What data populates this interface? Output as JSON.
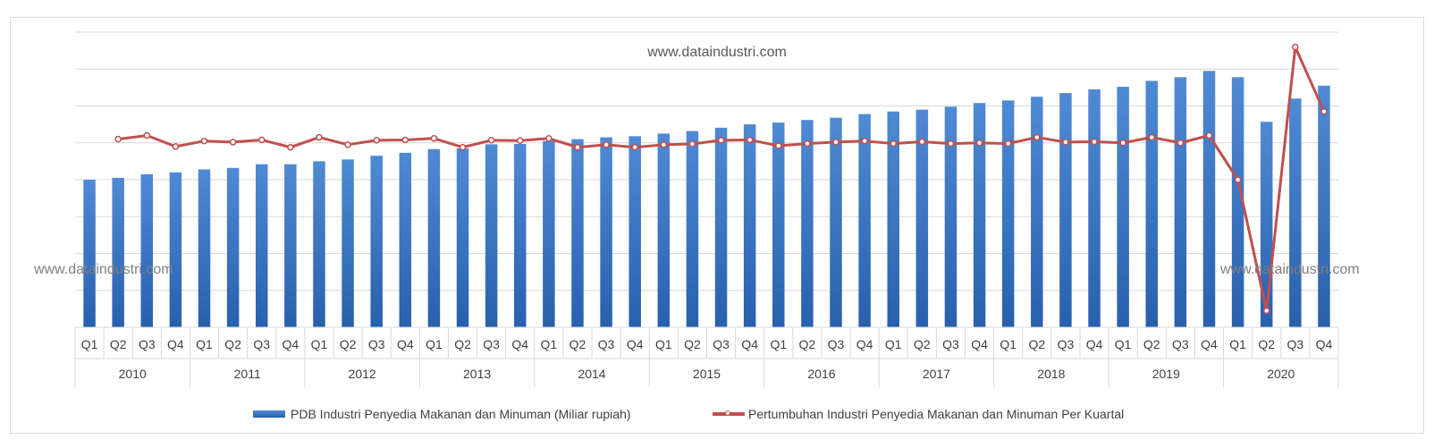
{
  "watermarks": {
    "top": "www.dataindustri.com",
    "left": "www.dataindustri.com",
    "right": "www.dataindustri.com"
  },
  "legend": {
    "bar": "PDB Industri Penyedia Makanan dan Minuman (Miliar rupiah)",
    "line": "Pertumbuhan Industri Penyedia Makanan dan Minuman Per Kuartal"
  },
  "colors": {
    "bar_top": "#4f8ad4",
    "bar_bottom": "#2860ad",
    "line": "#c0504d",
    "grid": "#d9d9d9"
  },
  "chart_data": {
    "type": "bar",
    "title": "",
    "xlabel": "",
    "ylabel": "",
    "grid": true,
    "legend_position": "bottom",
    "years": [
      "2010",
      "2011",
      "2012",
      "2013",
      "2014",
      "2015",
      "2016",
      "2017",
      "2018",
      "2019",
      "2020"
    ],
    "quarters": [
      "Q1",
      "Q2",
      "Q3",
      "Q4"
    ],
    "categories": [
      "Q1 2010",
      "Q2 2010",
      "Q3 2010",
      "Q4 2010",
      "Q1 2011",
      "Q2 2011",
      "Q3 2011",
      "Q4 2011",
      "Q1 2012",
      "Q2 2012",
      "Q3 2012",
      "Q4 2012",
      "Q1 2013",
      "Q2 2013",
      "Q3 2013",
      "Q4 2013",
      "Q1 2014",
      "Q2 2014",
      "Q3 2014",
      "Q4 2014",
      "Q1 2015",
      "Q2 2015",
      "Q3 2015",
      "Q4 2015",
      "Q1 2016",
      "Q2 2016",
      "Q3 2016",
      "Q4 2016",
      "Q1 2017",
      "Q2 2017",
      "Q3 2017",
      "Q4 2017",
      "Q1 2018",
      "Q2 2018",
      "Q3 2018",
      "Q4 2018",
      "Q1 2019",
      "Q2 2019",
      "Q3 2019",
      "Q4 2019",
      "Q1 2020",
      "Q2 2020",
      "Q3 2020",
      "Q4 2020"
    ],
    "series": [
      {
        "name": "PDB Industri Penyedia Makanan dan Minuman (Miliar rupiah)",
        "type": "bar",
        "values": [
          4.0,
          4.05,
          4.15,
          4.2,
          4.28,
          4.32,
          4.42,
          4.42,
          4.5,
          4.55,
          4.65,
          4.73,
          4.83,
          4.85,
          4.96,
          4.97,
          5.05,
          5.1,
          5.15,
          5.18,
          5.25,
          5.32,
          5.41,
          5.5,
          5.55,
          5.62,
          5.68,
          5.78,
          5.85,
          5.9,
          5.98,
          6.08,
          6.15,
          6.25,
          6.35,
          6.45,
          6.52,
          6.68,
          6.78,
          6.95,
          6.78,
          5.57,
          6.2,
          6.55
        ]
      },
      {
        "name": "Pertumbuhan Industri Penyedia Makanan dan Minuman Per Kuartal",
        "type": "line",
        "values": [
          null,
          5.1,
          5.2,
          4.9,
          5.05,
          5.02,
          5.08,
          4.88,
          5.15,
          4.95,
          5.07,
          5.08,
          5.12,
          4.88,
          5.07,
          5.06,
          5.12,
          4.88,
          4.95,
          4.88,
          4.95,
          4.97,
          5.07,
          5.08,
          4.92,
          4.98,
          5.02,
          5.05,
          4.98,
          5.03,
          4.98,
          5.0,
          4.98,
          5.15,
          5.02,
          5.03,
          5.0,
          5.15,
          5.0,
          5.2,
          4.0,
          0.45,
          7.6,
          5.85
        ]
      }
    ],
    "ylim": [
      0,
      8
    ]
  }
}
